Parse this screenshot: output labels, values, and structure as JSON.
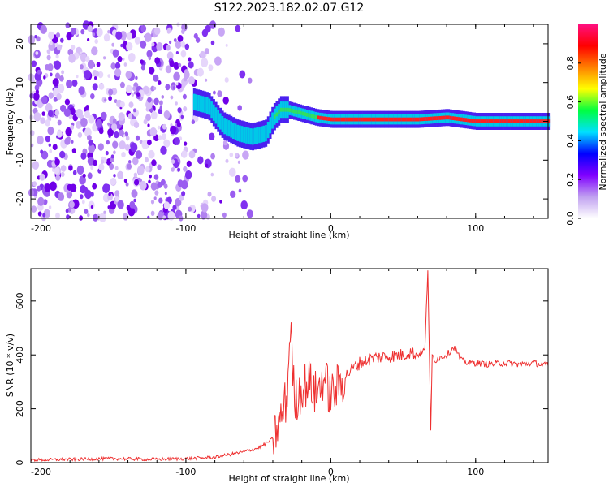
{
  "title": "S122.2023.182.02.07.G12",
  "chart_data": [
    {
      "type": "heatmap",
      "title": "S122.2023.182.02.07.G12",
      "xlabel": "Height of straight line (km)",
      "ylabel": "Frequency (Hz)",
      "xlim": [
        -207,
        150
      ],
      "ylim": [
        -25,
        25
      ],
      "x_ticks": [
        -200,
        -100,
        0,
        100
      ],
      "y_ticks": [
        -20,
        -10,
        0,
        10,
        20
      ],
      "colorbar": {
        "label": "Normalized spectral amplitude",
        "range": [
          0,
          1
        ],
        "ticks": [
          0.0,
          0.2,
          0.4,
          0.6,
          0.8
        ],
        "colors": [
          "#ffffff",
          "#c0a0f0",
          "#8000ff",
          "#0000ff",
          "#00e0ff",
          "#00ff40",
          "#ffff00",
          "#ff8000",
          "#ff0000",
          "#ff1080"
        ]
      },
      "signal_track": {
        "x": [
          -95,
          -85,
          -75,
          -65,
          -55,
          -45,
          -40,
          -35,
          -30,
          -20,
          -10,
          0,
          20,
          40,
          60,
          80,
          100,
          120,
          150
        ],
        "frequency": [
          5,
          4,
          -1,
          -3,
          -4,
          -3,
          1,
          3,
          3,
          2,
          1,
          0.5,
          0.5,
          0.5,
          0.5,
          1,
          0,
          0,
          0
        ]
      },
      "noise_region_x": [
        -207,
        -55
      ]
    },
    {
      "type": "line",
      "xlabel": "Height of straight line (km)",
      "ylabel": "SNR (10 * v/v)",
      "xlim": [
        -207,
        150
      ],
      "ylim": [
        0,
        720
      ],
      "x_ticks": [
        -200,
        -100,
        0,
        100
      ],
      "y_ticks": [
        0,
        200,
        400,
        600
      ],
      "color": "#ee3030",
      "series": [
        {
          "x": [
            -207,
            -180,
            -150,
            -120,
            -100,
            -80,
            -70,
            -60,
            -50,
            -45,
            -40,
            -35,
            -30,
            -28,
            -25,
            -20,
            -15,
            -10,
            -5,
            0,
            5,
            10,
            15,
            20,
            25,
            30,
            40,
            50,
            55,
            60,
            65,
            67,
            69,
            70,
            72,
            75,
            80,
            85,
            90,
            95,
            100,
            110,
            120,
            130,
            140,
            150
          ],
          "values": [
            10,
            12,
            15,
            12,
            15,
            20,
            30,
            40,
            55,
            70,
            90,
            150,
            250,
            520,
            220,
            280,
            300,
            250,
            320,
            250,
            280,
            320,
            350,
            370,
            380,
            390,
            395,
            400,
            410,
            400,
            420,
            720,
            110,
            400,
            380,
            390,
            400,
            430,
            380,
            370,
            370,
            365,
            370,
            365,
            370,
            360
          ]
        }
      ]
    }
  ]
}
